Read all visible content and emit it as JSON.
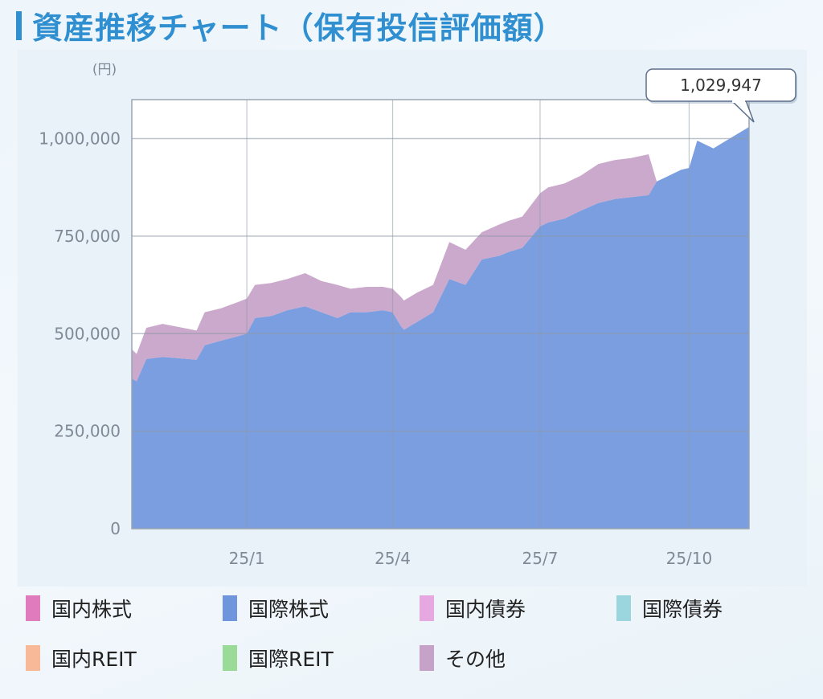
{
  "title": "資産推移チャート（保有投信評価額）",
  "chart_data": {
    "type": "area",
    "title": "資産推移チャート（保有投信評価額）",
    "unit_label": "(円)",
    "ylim": [
      0,
      1100000
    ],
    "y_ticks": [
      {
        "value": 0,
        "label": "0"
      },
      {
        "value": 250000,
        "label": "250,000"
      },
      {
        "value": 500000,
        "label": "500,000"
      },
      {
        "value": 750000,
        "label": "750,000"
      },
      {
        "value": 1000000,
        "label": "1,000,000"
      }
    ],
    "x_domain": [
      "2024-10-22",
      "2025-11-07"
    ],
    "x_ticks": [
      {
        "date": "2025-01-01",
        "label": "25/1"
      },
      {
        "date": "2025-04-01",
        "label": "25/4"
      },
      {
        "date": "2025-07-01",
        "label": "25/7"
      },
      {
        "date": "2025-10-01",
        "label": "25/10"
      }
    ],
    "grid": true,
    "stacked": true,
    "callout": {
      "date": "2025-11-07",
      "value": 1029947,
      "label": "1,029,947"
    },
    "x": [
      "2024-10-22",
      "2024-10-25",
      "2024-10-31",
      "2024-11-10",
      "2024-11-20",
      "2024-12-01",
      "2024-12-06",
      "2024-12-16",
      "2024-12-26",
      "2025-01-01",
      "2025-01-06",
      "2025-01-16",
      "2025-01-26",
      "2025-02-06",
      "2025-02-16",
      "2025-02-26",
      "2025-03-06",
      "2025-03-16",
      "2025-03-26",
      "2025-04-01",
      "2025-04-06",
      "2025-04-08",
      "2025-04-16",
      "2025-04-26",
      "2025-05-06",
      "2025-05-16",
      "2025-05-26",
      "2025-06-06",
      "2025-06-12",
      "2025-06-20",
      "2025-07-01",
      "2025-07-06",
      "2025-07-16",
      "2025-07-26",
      "2025-08-06",
      "2025-08-16",
      "2025-08-26",
      "2025-09-06",
      "2025-09-11",
      "2025-09-16",
      "2025-09-26",
      "2025-10-01",
      "2025-10-06",
      "2025-10-16",
      "2025-10-26",
      "2025-11-07"
    ],
    "series": [
      {
        "name": "国内株式",
        "color": "#e07bbd",
        "values": [
          0,
          0,
          0,
          0,
          0,
          0,
          0,
          0,
          0,
          0,
          0,
          0,
          0,
          0,
          0,
          0,
          0,
          0,
          0,
          0,
          0,
          0,
          0,
          0,
          0,
          0,
          0,
          0,
          0,
          0,
          0,
          0,
          0,
          0,
          0,
          0,
          0,
          0,
          0,
          0,
          0,
          0,
          0,
          0,
          0,
          0
        ]
      },
      {
        "name": "国際株式",
        "color": "#6f96dc",
        "values": [
          385000,
          378000,
          435000,
          440000,
          437000,
          433000,
          470000,
          482000,
          493000,
          500000,
          540000,
          545000,
          560000,
          570000,
          555000,
          540000,
          555000,
          555000,
          560000,
          555000,
          520000,
          510000,
          530000,
          555000,
          640000,
          625000,
          690000,
          700000,
          710000,
          720000,
          775000,
          785000,
          795000,
          815000,
          835000,
          845000,
          850000,
          855000,
          890000,
          900000,
          920000,
          925000,
          995000,
          975000,
          1000000,
          1029947
        ]
      },
      {
        "name": "国内債券",
        "color": "#e6a8e0",
        "values": [
          0,
          0,
          0,
          0,
          0,
          0,
          0,
          0,
          0,
          0,
          0,
          0,
          0,
          0,
          0,
          0,
          0,
          0,
          0,
          0,
          0,
          0,
          0,
          0,
          0,
          0,
          0,
          0,
          0,
          0,
          0,
          0,
          0,
          0,
          0,
          0,
          0,
          0,
          0,
          0,
          0,
          0,
          0,
          0,
          0,
          0
        ]
      },
      {
        "name": "国際債券",
        "color": "#9bd5de",
        "values": [
          0,
          0,
          0,
          0,
          0,
          0,
          0,
          0,
          0,
          0,
          0,
          0,
          0,
          0,
          0,
          0,
          0,
          0,
          0,
          0,
          0,
          0,
          0,
          0,
          0,
          0,
          0,
          0,
          0,
          0,
          0,
          0,
          0,
          0,
          0,
          0,
          0,
          0,
          0,
          0,
          0,
          0,
          0,
          0,
          0,
          0
        ]
      },
      {
        "name": "国内REIT",
        "color": "#f7b997",
        "values": [
          0,
          0,
          0,
          0,
          0,
          0,
          0,
          0,
          0,
          0,
          0,
          0,
          0,
          0,
          0,
          0,
          0,
          0,
          0,
          0,
          0,
          0,
          0,
          0,
          0,
          0,
          0,
          0,
          0,
          0,
          0,
          0,
          0,
          0,
          0,
          0,
          0,
          0,
          0,
          0,
          0,
          0,
          0,
          0,
          0,
          0
        ]
      },
      {
        "name": "国際REIT",
        "color": "#99db97",
        "values": [
          0,
          0,
          0,
          0,
          0,
          0,
          0,
          0,
          0,
          0,
          0,
          0,
          0,
          0,
          0,
          0,
          0,
          0,
          0,
          0,
          0,
          0,
          0,
          0,
          0,
          0,
          0,
          0,
          0,
          0,
          0,
          0,
          0,
          0,
          0,
          0,
          0,
          0,
          0,
          0,
          0,
          0,
          0,
          0,
          0,
          0
        ]
      },
      {
        "name": "その他",
        "color": "#c6a2c8",
        "values": [
          75000,
          70000,
          80000,
          85000,
          80000,
          75000,
          85000,
          83000,
          87000,
          90000,
          85000,
          85000,
          80000,
          85000,
          80000,
          85000,
          60000,
          65000,
          60000,
          60000,
          75000,
          75000,
          75000,
          70000,
          95000,
          90000,
          70000,
          80000,
          80000,
          80000,
          85000,
          90000,
          90000,
          90000,
          100000,
          100000,
          100000,
          105000,
          0,
          0,
          0,
          0,
          0,
          0,
          0,
          0
        ]
      }
    ]
  },
  "legend": [
    {
      "label": "国内株式",
      "color": "#e07bbd"
    },
    {
      "label": "国際株式",
      "color": "#6f96dc"
    },
    {
      "label": "国内債券",
      "color": "#e6a8e0"
    },
    {
      "label": "国際債券",
      "color": "#9bd5de"
    },
    {
      "label": "国内REIT",
      "color": "#f7b997"
    },
    {
      "label": "国際REIT",
      "color": "#99db97"
    },
    {
      "label": "その他",
      "color": "#c6a2c8"
    }
  ]
}
